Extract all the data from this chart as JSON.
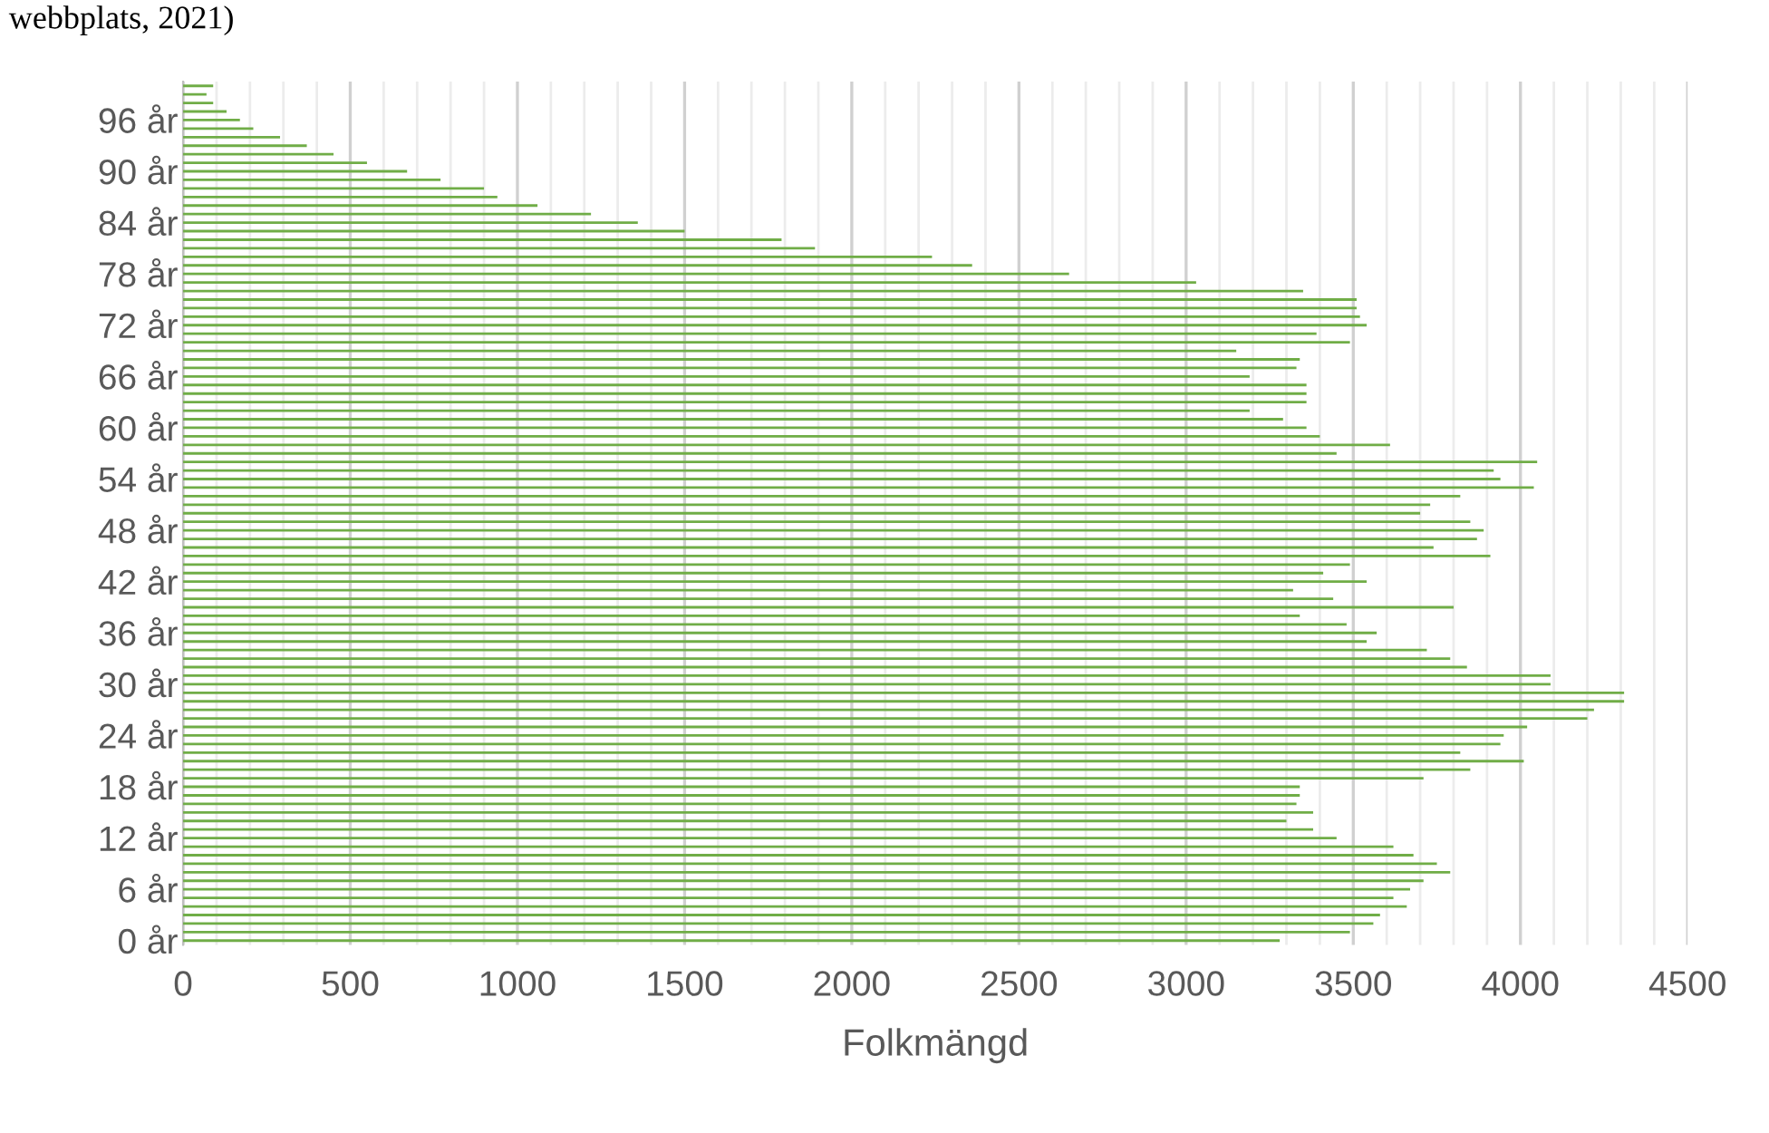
{
  "chart_data": {
    "type": "bar",
    "orientation": "horizontal",
    "xlabel": "Folkmängd",
    "annotations": [
      "webbplats, 2021)"
    ],
    "categories": [
      null,
      null,
      null,
      null,
      "96 år",
      null,
      null,
      null,
      null,
      null,
      "90 år",
      null,
      null,
      null,
      null,
      null,
      "84 år",
      null,
      null,
      null,
      null,
      null,
      "78 år",
      null,
      null,
      null,
      null,
      null,
      "72 år",
      null,
      null,
      null,
      null,
      null,
      "66 år",
      null,
      null,
      null,
      null,
      null,
      "60 år",
      null,
      null,
      null,
      null,
      null,
      "54 år",
      null,
      null,
      null,
      null,
      null,
      "48 år",
      null,
      null,
      null,
      null,
      null,
      "42 år",
      null,
      null,
      null,
      null,
      null,
      "36 år",
      null,
      null,
      null,
      null,
      null,
      "30 år",
      null,
      null,
      null,
      null,
      null,
      "24 år",
      null,
      null,
      null,
      null,
      null,
      "18 år",
      null,
      null,
      null,
      null,
      null,
      "12 år",
      null,
      null,
      null,
      null,
      null,
      "6 år",
      null,
      null,
      null,
      null,
      null,
      "0 år"
    ],
    "series": [
      {
        "color": "#70ad47",
        "values": [
          90,
          70,
          90,
          130,
          170,
          210,
          290,
          370,
          450,
          550,
          670,
          770,
          900,
          940,
          1060,
          1220,
          1360,
          1500,
          1790,
          1890,
          2240,
          2360,
          2650,
          3030,
          3350,
          3510,
          3510,
          3520,
          3540,
          3390,
          3490,
          3150,
          3340,
          3330,
          3190,
          3360,
          3360,
          3360,
          3190,
          3290,
          3360,
          3400,
          3610,
          3450,
          4050,
          3920,
          3940,
          4040,
          3820,
          3730,
          3700,
          3850,
          3890,
          3870,
          3740,
          3910,
          3490,
          3410,
          3540,
          3320,
          3440,
          3800,
          3340,
          3480,
          3570,
          3540,
          3720,
          3790,
          3840,
          4090,
          4090,
          4310,
          4310,
          4220,
          4200,
          4020,
          3950,
          3940,
          3820,
          4010,
          3850,
          3710,
          3340,
          3340,
          3330,
          3380,
          3300,
          3380,
          3450,
          3620,
          3680,
          3750,
          3790,
          3710,
          3670,
          3620,
          3660,
          3580,
          3560,
          3490,
          3280
        ]
      }
    ],
    "xlim": [
      0,
      4500
    ],
    "xticks": [
      0,
      500,
      1000,
      1500,
      2000,
      2500,
      3000,
      3500,
      4000,
      4500
    ],
    "grid": "x",
    "legend": false
  }
}
